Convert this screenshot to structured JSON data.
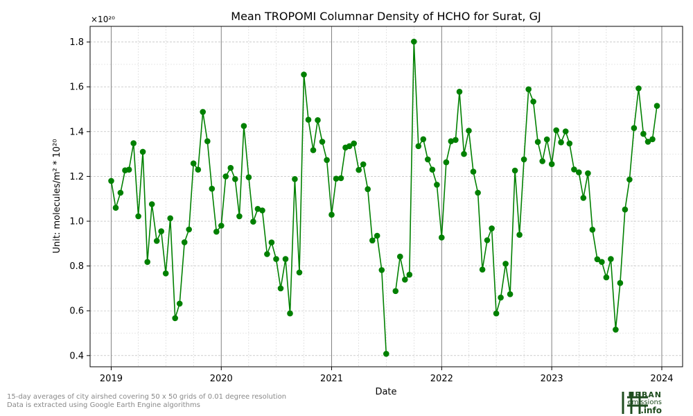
{
  "chart_data": {
    "type": "line",
    "title": "Mean TROPOMI Columnar Density of HCHO for Surat, GJ",
    "xlabel": "Date",
    "ylabel": "Unit: molecules/m² * 10²⁰",
    "y_offset_label": "×10²⁰",
    "xlim": [
      "2018-10-23",
      "2024-03-10"
    ],
    "ylim": [
      0.35,
      1.87
    ],
    "x_ticks": [
      "2019",
      "2020",
      "2021",
      "2022",
      "2023",
      "2024"
    ],
    "y_ticks": [
      0.4,
      0.6,
      0.8,
      1.0,
      1.2,
      1.4,
      1.6,
      1.8
    ],
    "grid": true,
    "color": "#008000",
    "x": [
      "2019-01-01",
      "2019-01-16",
      "2019-02-01",
      "2019-02-16",
      "2019-03-01",
      "2019-03-16",
      "2019-04-01",
      "2019-04-16",
      "2019-05-01",
      "2019-05-16",
      "2019-06-01",
      "2019-06-16",
      "2019-07-01",
      "2019-07-16",
      "2019-08-01",
      "2019-08-16",
      "2019-09-01",
      "2019-09-16",
      "2019-10-01",
      "2019-10-16",
      "2019-11-01",
      "2019-11-16",
      "2019-12-01",
      "2019-12-16",
      "2020-01-01",
      "2020-01-16",
      "2020-02-01",
      "2020-02-16",
      "2020-03-01",
      "2020-03-16",
      "2020-04-01",
      "2020-04-16",
      "2020-05-01",
      "2020-05-16",
      "2020-06-01",
      "2020-06-16",
      "2020-07-01",
      "2020-07-16",
      "2020-08-01",
      "2020-08-16",
      "2020-09-01",
      "2020-09-16",
      "2020-10-01",
      "2020-10-16",
      "2020-11-01",
      "2020-11-16",
      "2020-12-01",
      "2020-12-16",
      "2021-01-01",
      "2021-01-16",
      "2021-02-01",
      "2021-02-16",
      "2021-03-01",
      "2021-03-16",
      "2021-04-01",
      "2021-04-16",
      "2021-05-01",
      "2021-05-16",
      "2021-06-01",
      "2021-06-16",
      "2021-07-01",
      "2021-07-16",
      "2021-08-01",
      "2021-08-16",
      "2021-09-01",
      "2021-09-16",
      "2021-10-01",
      "2021-10-16",
      "2021-11-01",
      "2021-11-16",
      "2021-12-01",
      "2021-12-16",
      "2022-01-01",
      "2022-01-16",
      "2022-02-01",
      "2022-02-16",
      "2022-03-01",
      "2022-03-16",
      "2022-04-01",
      "2022-04-16",
      "2022-05-01",
      "2022-05-16",
      "2022-06-01",
      "2022-06-16",
      "2022-07-01",
      "2022-07-16",
      "2022-08-01",
      "2022-08-16",
      "2022-09-01",
      "2022-09-16",
      "2022-10-01",
      "2022-10-16",
      "2022-11-01",
      "2022-11-16",
      "2022-12-01",
      "2022-12-16",
      "2023-01-01",
      "2023-01-16",
      "2023-02-01",
      "2023-02-16",
      "2023-03-01",
      "2023-03-16",
      "2023-04-01",
      "2023-04-16",
      "2023-05-01",
      "2023-05-16",
      "2023-06-01",
      "2023-06-16",
      "2023-07-01",
      "2023-07-16",
      "2023-08-01",
      "2023-08-16",
      "2023-09-01",
      "2023-09-16",
      "2023-10-01",
      "2023-10-16",
      "2023-11-01",
      "2023-11-16",
      "2023-12-01",
      "2023-12-16"
    ],
    "values": [
      1.18,
      1.06,
      1.127,
      1.227,
      1.23,
      1.348,
      1.022,
      1.31,
      0.818,
      1.076,
      0.912,
      0.955,
      0.767,
      1.013,
      0.567,
      0.632,
      0.906,
      0.963,
      1.258,
      1.23,
      1.488,
      1.357,
      1.145,
      0.953,
      0.98,
      1.2,
      1.238,
      1.188,
      1.022,
      1.425,
      1.196,
      0.998,
      1.055,
      1.048,
      0.853,
      0.905,
      0.831,
      0.7,
      0.831,
      0.588,
      1.188,
      0.771,
      1.655,
      1.453,
      1.317,
      1.451,
      1.355,
      1.273,
      1.029,
      1.19,
      1.192,
      1.329,
      1.335,
      1.347,
      1.229,
      1.254,
      1.143,
      0.914,
      0.935,
      0.782,
      0.408,
      null,
      0.688,
      0.842,
      0.739,
      0.761,
      1.802,
      1.335,
      1.366,
      1.276,
      1.23,
      1.163,
      0.927,
      1.263,
      1.357,
      1.363,
      1.578,
      1.3,
      1.404,
      1.221,
      1.127,
      0.784,
      0.915,
      0.968,
      0.588,
      0.659,
      0.81,
      0.674,
      1.226,
      0.939,
      1.276,
      1.589,
      1.534,
      1.354,
      1.268,
      1.365,
      1.255,
      1.406,
      1.352,
      1.401,
      1.347,
      1.231,
      1.218,
      1.104,
      1.214,
      0.962,
      0.83,
      0.818,
      0.749,
      0.831,
      0.516,
      0.724,
      1.052,
      1.186,
      1.416,
      1.593,
      1.39,
      1.355,
      1.366,
      1.515
    ]
  },
  "footer": {
    "line1": "15-day averages of city airshed covering 50 x 50 grids of 0.01 degree resolution",
    "line2": "Data is extracted using Google Earth Engine algorithms"
  },
  "logo": {
    "word1": "URBAN",
    "word2": "emissions",
    "word3": ".info",
    "color": "#1f4d1f"
  }
}
